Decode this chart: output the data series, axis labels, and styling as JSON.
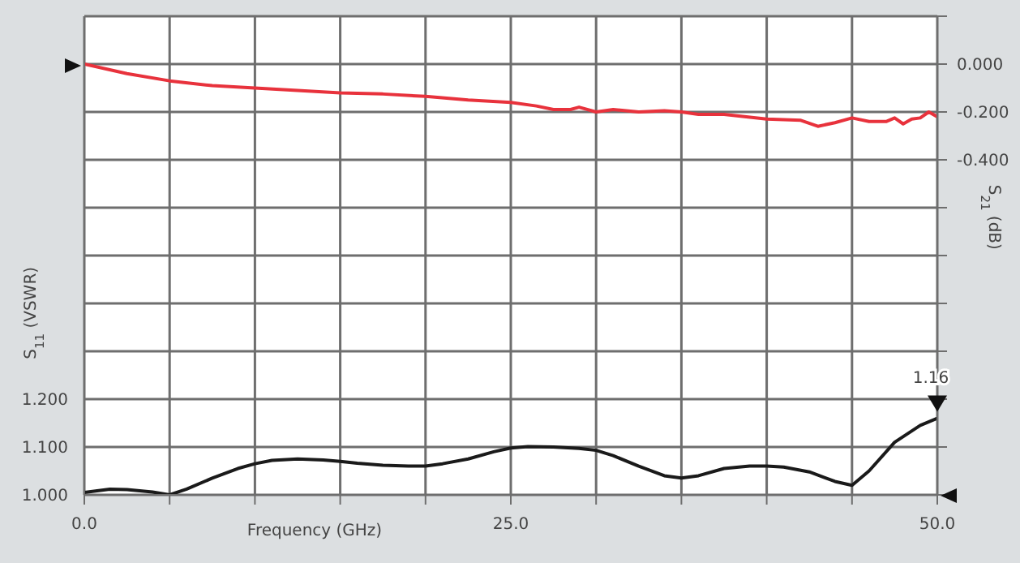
{
  "chart_data": {
    "type": "line",
    "xlabel": "Frequency (GHz)",
    "ylabel": "S$_{11}$ (VSWR)",
    "y2label": "S$_{21}$ (dB)",
    "xlim": [
      0,
      50
    ],
    "xticks": [
      {
        "value": 0,
        "label": "0.0"
      },
      {
        "value": 5,
        "label": null
      },
      {
        "value": 10,
        "label": null
      },
      {
        "value": 15,
        "label": null
      },
      {
        "value": 20,
        "label": null
      },
      {
        "value": 25,
        "label": "25.0"
      },
      {
        "value": 30,
        "label": null
      },
      {
        "value": 35,
        "label": null
      },
      {
        "value": 40,
        "label": null
      },
      {
        "value": 45,
        "label": null
      },
      {
        "value": 50,
        "label": "50.0"
      }
    ],
    "ylim": [
      1,
      2
    ],
    "yticks": [
      {
        "value": 1,
        "label": "1.000"
      },
      {
        "value": 1.1,
        "label": "1.100"
      },
      {
        "value": 1.2,
        "label": "1.200"
      },
      {
        "value": 1.3,
        "label": null
      },
      {
        "value": 1.4,
        "label": null
      },
      {
        "value": 1.5,
        "label": null
      },
      {
        "value": 1.6,
        "label": null
      },
      {
        "value": 1.7,
        "label": null
      },
      {
        "value": 1.8,
        "label": null
      },
      {
        "value": 1.9,
        "label": null
      },
      {
        "value": 2,
        "label": null
      }
    ],
    "y2lim": [
      -1.8,
      0.2
    ],
    "y2ticks": [
      {
        "value": -1.8,
        "label": null
      },
      {
        "value": -1.6,
        "label": null
      },
      {
        "value": -1.4,
        "label": null
      },
      {
        "value": -1.2,
        "label": null
      },
      {
        "value": -1,
        "label": null
      },
      {
        "value": -0.8,
        "label": null
      },
      {
        "value": -0.6,
        "label": null
      },
      {
        "value": -0.4,
        "label": "-0.400"
      },
      {
        "value": -0.2,
        "label": "-0.200"
      },
      {
        "value": 0,
        "label": "0.000"
      },
      {
        "value": 0.2,
        "label": null
      }
    ],
    "grid": true,
    "marker": "none",
    "line_style": "solid",
    "series": [
      {
        "color": "#e8323c",
        "axis": "y2",
        "x": [
          0,
          2.5,
          5,
          7.5,
          10,
          12.5,
          15,
          17.5,
          20,
          22.5,
          25,
          26.5,
          27.5,
          28.5,
          29,
          30,
          31,
          32.5,
          34,
          35,
          36,
          37.5,
          40,
          42,
          43,
          44,
          45,
          46,
          47,
          47.5,
          48,
          48.5,
          49,
          49.5,
          50
        ],
        "values": [
          0,
          -0.04,
          -0.07,
          -0.09,
          -0.1,
          -0.11,
          -0.12,
          -0.125,
          -0.135,
          -0.15,
          -0.16,
          -0.175,
          -0.19,
          -0.19,
          -0.18,
          -0.2,
          -0.19,
          -0.2,
          -0.195,
          -0.2,
          -0.21,
          -0.21,
          -0.23,
          -0.235,
          -0.26,
          -0.245,
          -0.225,
          -0.24,
          -0.24,
          -0.225,
          -0.25,
          -0.23,
          -0.225,
          -0.2,
          -0.22
        ]
      },
      {
        "color": "#1a1a1a",
        "axis": "y",
        "x": [
          0,
          1.5,
          2.5,
          4,
          5,
          6,
          7.5,
          9,
          10,
          11,
          12.5,
          14,
          15,
          16,
          17.5,
          19,
          20,
          21,
          22.5,
          24,
          25,
          26,
          27.5,
          29,
          30,
          31,
          32.5,
          34,
          35,
          36,
          37.5,
          39,
          40,
          41,
          42.5,
          44,
          45,
          46,
          47.5,
          49,
          50
        ],
        "values": [
          1.005,
          1.012,
          1.011,
          1.006,
          1.0,
          1.012,
          1.035,
          1.055,
          1.065,
          1.072,
          1.075,
          1.073,
          1.07,
          1.066,
          1.062,
          1.06,
          1.06,
          1.065,
          1.075,
          1.09,
          1.098,
          1.101,
          1.1,
          1.097,
          1.093,
          1.082,
          1.06,
          1.04,
          1.035,
          1.04,
          1.055,
          1.06,
          1.06,
          1.058,
          1.048,
          1.028,
          1.02,
          1.05,
          1.11,
          1.145,
          1.16
        ]
      }
    ],
    "annotations": [
      {
        "text": "1.16",
        "x": 50,
        "y": 1.16
      }
    ]
  }
}
